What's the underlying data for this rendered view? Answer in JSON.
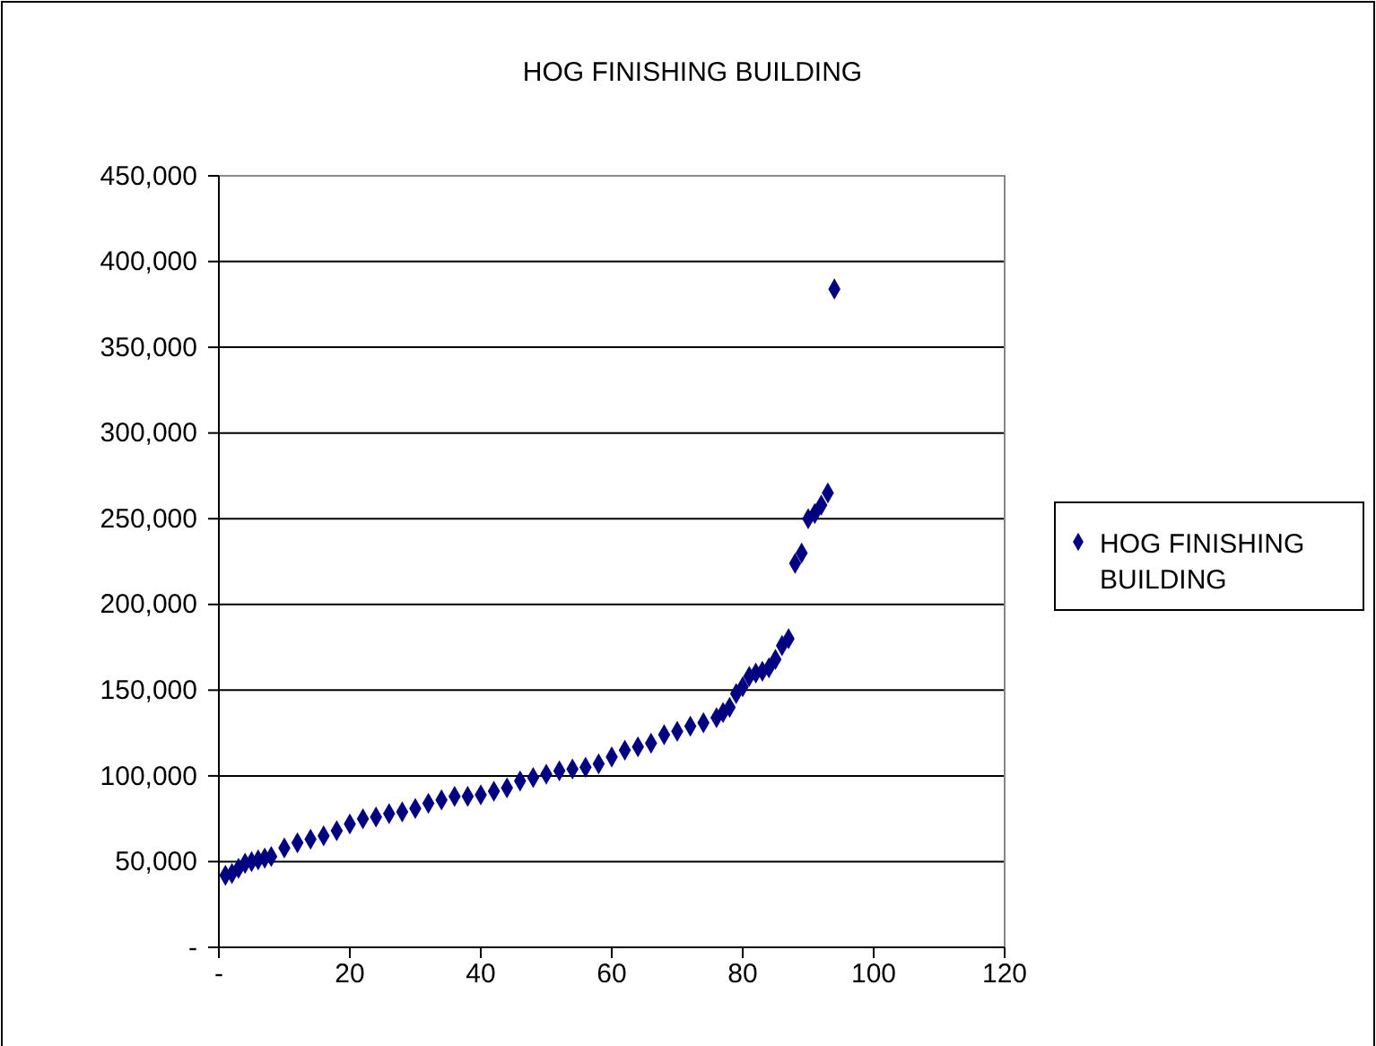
{
  "chart_data": {
    "type": "scatter",
    "title": "HOG FINISHING BUILDING",
    "x": [
      1,
      2,
      3,
      4,
      5,
      6,
      7,
      8,
      10,
      12,
      14,
      16,
      18,
      20,
      22,
      24,
      26,
      28,
      30,
      32,
      34,
      36,
      38,
      40,
      42,
      44,
      46,
      48,
      50,
      52,
      54,
      56,
      58,
      60,
      62,
      64,
      66,
      68,
      70,
      72,
      74,
      76,
      77,
      78,
      79,
      80,
      81,
      82,
      83,
      84,
      85,
      86,
      87,
      88,
      89,
      90,
      91,
      92,
      93,
      94
    ],
    "series": [
      {
        "name": "HOG FINISHING BUILDING",
        "color": "#000080",
        "values": [
          42000,
          43000,
          46000,
          49000,
          50000,
          51000,
          52000,
          53000,
          58000,
          61000,
          63000,
          65000,
          68000,
          72000,
          75000,
          76000,
          78000,
          79000,
          81000,
          84000,
          86000,
          88000,
          88000,
          89000,
          91000,
          93000,
          97000,
          99000,
          101000,
          103000,
          104000,
          105000,
          107000,
          111000,
          115000,
          117000,
          119000,
          124000,
          126000,
          129000,
          131000,
          134000,
          137000,
          140000,
          148000,
          152000,
          158000,
          160000,
          161000,
          163000,
          168000,
          176000,
          180000,
          224000,
          230000,
          250000,
          253000,
          258000,
          265000,
          384000
        ]
      }
    ],
    "xlim": [
      0,
      120
    ],
    "xticks": [
      {
        "value": 0,
        "label": "-"
      },
      20,
      40,
      60,
      80,
      100,
      120
    ],
    "ylim": [
      0,
      450000
    ],
    "yticks": [
      {
        "value": 0,
        "label": "-"
      },
      {
        "value": 50000,
        "label": "50,000"
      },
      {
        "value": 100000,
        "label": "100,000"
      },
      {
        "value": 150000,
        "label": "150,000"
      },
      {
        "value": 200000,
        "label": "200,000"
      },
      {
        "value": 250000,
        "label": "250,000"
      },
      {
        "value": 300000,
        "label": "300,000"
      },
      {
        "value": 350000,
        "label": "350,000"
      },
      {
        "value": 400000,
        "label": "400,000"
      },
      {
        "value": 450000,
        "label": "450,000"
      }
    ],
    "grid": "y",
    "legend": "right",
    "marker": "diamond"
  }
}
